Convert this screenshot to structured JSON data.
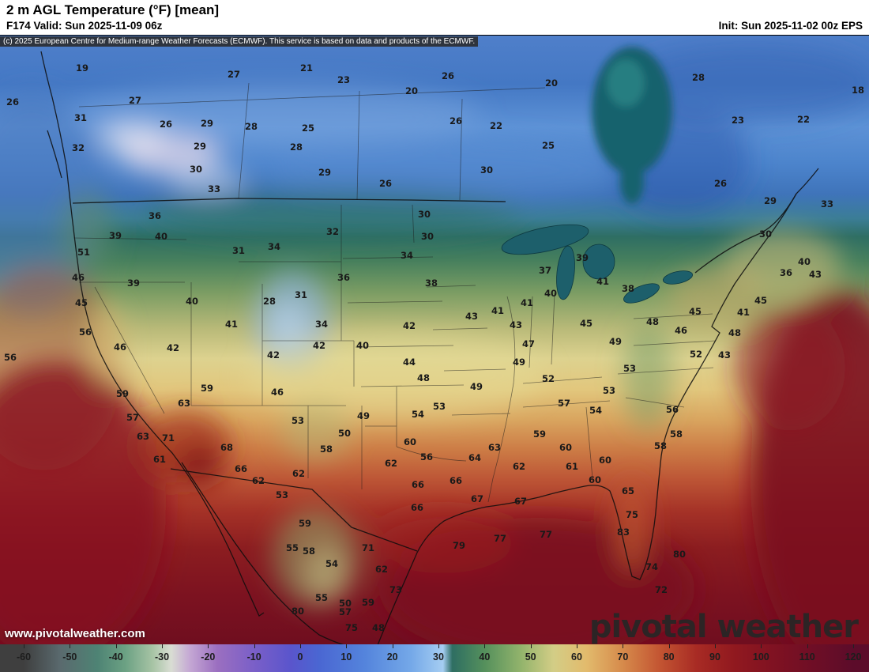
{
  "header": {
    "title": "2 m AGL Temperature (°F) [mean]",
    "valid": "F174 Valid: Sun 2025-11-09 06z",
    "init": "Init: Sun 2025-11-02 00z EPS"
  },
  "map": {
    "copyright": "(c) 2025 European Centre for Medium-range Weather Forecasts (ECMWF). This service is based on data and products of the ECMWF.",
    "watermark": "www.pivotalweather.com",
    "logo": "pivotal weather"
  },
  "chart_data": {
    "type": "heatmap",
    "title": "2 m AGL Temperature (°F) [mean]",
    "units": "°F",
    "model": "EPS",
    "forecast_hour": "F174",
    "valid_time": "Sun 2025-11-09 06z",
    "init_time": "Sun 2025-11-02 00z",
    "region": "North America",
    "colorbar": {
      "min": -60,
      "max": 120,
      "ticks": [
        -60,
        -50,
        -40,
        -30,
        -20,
        -10,
        0,
        10,
        20,
        30,
        40,
        50,
        60,
        70,
        80,
        90,
        100,
        110,
        120
      ],
      "stops": [
        {
          "v": -60,
          "c": "#3f3f3f"
        },
        {
          "v": -52,
          "c": "#5a6a6e"
        },
        {
          "v": -44,
          "c": "#4e8374"
        },
        {
          "v": -38,
          "c": "#6ba183"
        },
        {
          "v": -32,
          "c": "#a7c4a5"
        },
        {
          "v": -28,
          "c": "#d9ddd3"
        },
        {
          "v": -24,
          "c": "#c5a8d4"
        },
        {
          "v": -18,
          "c": "#9b6fc0"
        },
        {
          "v": -10,
          "c": "#7a5fc8"
        },
        {
          "v": -2,
          "c": "#5a55cc"
        },
        {
          "v": 4,
          "c": "#4a66d2"
        },
        {
          "v": 14,
          "c": "#5484dc"
        },
        {
          "v": 24,
          "c": "#74a8e8"
        },
        {
          "v": 31,
          "c": "#a5cdf2"
        },
        {
          "v": 33,
          "c": "#2e6e62"
        },
        {
          "v": 40,
          "c": "#55905c"
        },
        {
          "v": 48,
          "c": "#93b46c"
        },
        {
          "v": 55,
          "c": "#d3cd86"
        },
        {
          "v": 62,
          "c": "#e2bb6d"
        },
        {
          "v": 70,
          "c": "#d68a4b"
        },
        {
          "v": 78,
          "c": "#c35532"
        },
        {
          "v": 86,
          "c": "#a82b24"
        },
        {
          "v": 94,
          "c": "#91191f"
        },
        {
          "v": 104,
          "c": "#7d1122"
        },
        {
          "v": 112,
          "c": "#6d0e26"
        },
        {
          "v": 120,
          "c": "#5c0c2a"
        }
      ]
    },
    "station_values": [
      [
        19,
        104,
        41
      ],
      [
        27,
        296,
        49
      ],
      [
        21,
        388,
        41
      ],
      [
        23,
        435,
        56
      ],
      [
        26,
        567,
        51
      ],
      [
        20,
        698,
        60
      ],
      [
        28,
        884,
        53
      ],
      [
        18,
        1086,
        69
      ],
      [
        26,
        16,
        84
      ],
      [
        27,
        171,
        82
      ],
      [
        31,
        102,
        104
      ],
      [
        26,
        210,
        112
      ],
      [
        29,
        262,
        111
      ],
      [
        28,
        318,
        115
      ],
      [
        25,
        390,
        117
      ],
      [
        20,
        521,
        70
      ],
      [
        26,
        577,
        108
      ],
      [
        22,
        628,
        114
      ],
      [
        23,
        934,
        107
      ],
      [
        22,
        1017,
        106
      ],
      [
        32,
        99,
        142
      ],
      [
        29,
        253,
        140
      ],
      [
        28,
        375,
        141
      ],
      [
        25,
        694,
        139
      ],
      [
        30,
        248,
        169
      ],
      [
        29,
        411,
        173
      ],
      [
        26,
        488,
        187
      ],
      [
        30,
        616,
        170
      ],
      [
        26,
        912,
        187
      ],
      [
        29,
        975,
        209
      ],
      [
        33,
        271,
        194
      ],
      [
        30,
        537,
        226
      ],
      [
        33,
        1047,
        213
      ],
      [
        36,
        196,
        228
      ],
      [
        39,
        146,
        253
      ],
      [
        40,
        204,
        254
      ],
      [
        51,
        106,
        274
      ],
      [
        46,
        99,
        306
      ],
      [
        39,
        169,
        313
      ],
      [
        45,
        103,
        338
      ],
      [
        31,
        302,
        272
      ],
      [
        34,
        347,
        267
      ],
      [
        32,
        421,
        248
      ],
      [
        30,
        541,
        254
      ],
      [
        34,
        515,
        278
      ],
      [
        36,
        435,
        306
      ],
      [
        31,
        381,
        328
      ],
      [
        28,
        341,
        336
      ],
      [
        40,
        243,
        336
      ],
      [
        37,
        690,
        297
      ],
      [
        38,
        546,
        313
      ],
      [
        41,
        630,
        348
      ],
      [
        43,
        597,
        355
      ],
      [
        43,
        653,
        366
      ],
      [
        41,
        667,
        338
      ],
      [
        40,
        697,
        326
      ],
      [
        39,
        737,
        281
      ],
      [
        41,
        763,
        311
      ],
      [
        38,
        795,
        320
      ],
      [
        30,
        969,
        251
      ],
      [
        40,
        1018,
        286
      ],
      [
        43,
        1032,
        302
      ],
      [
        36,
        995,
        300
      ],
      [
        45,
        963,
        335
      ],
      [
        41,
        941,
        350
      ],
      [
        48,
        930,
        376
      ],
      [
        52,
        881,
        403
      ],
      [
        43,
        917,
        404
      ],
      [
        56,
        108,
        375
      ],
      [
        46,
        152,
        394
      ],
      [
        42,
        219,
        395
      ],
      [
        41,
        293,
        365
      ],
      [
        34,
        407,
        365
      ],
      [
        42,
        346,
        404
      ],
      [
        42,
        404,
        392
      ],
      [
        40,
        459,
        392
      ],
      [
        42,
        518,
        367
      ],
      [
        44,
        518,
        413
      ],
      [
        47,
        669,
        390
      ],
      [
        45,
        742,
        364
      ],
      [
        49,
        779,
        387
      ],
      [
        48,
        826,
        362
      ],
      [
        46,
        862,
        373
      ],
      [
        45,
        880,
        349
      ],
      [
        53,
        797,
        421
      ],
      [
        49,
        657,
        413
      ],
      [
        48,
        536,
        433
      ],
      [
        49,
        603,
        444
      ],
      [
        59,
        155,
        453
      ],
      [
        59,
        262,
        446
      ],
      [
        46,
        351,
        451
      ],
      [
        63,
        233,
        465
      ],
      [
        57,
        168,
        483
      ],
      [
        63,
        181,
        507
      ],
      [
        71,
        213,
        509
      ],
      [
        61,
        202,
        536
      ],
      [
        68,
        287,
        521
      ],
      [
        66,
        305,
        548
      ],
      [
        62,
        327,
        563
      ],
      [
        53,
        377,
        487
      ],
      [
        58,
        413,
        523
      ],
      [
        50,
        436,
        503
      ],
      [
        49,
        460,
        481
      ],
      [
        54,
        529,
        479
      ],
      [
        53,
        556,
        469
      ],
      [
        54,
        754,
        474
      ],
      [
        53,
        771,
        449
      ],
      [
        57,
        714,
        465
      ],
      [
        52,
        694,
        434
      ],
      [
        56,
        851,
        473
      ],
      [
        58,
        856,
        504
      ],
      [
        59,
        683,
        504
      ],
      [
        60,
        716,
        521
      ],
      [
        61,
        724,
        545
      ],
      [
        62,
        657,
        545
      ],
      [
        63,
        626,
        521
      ],
      [
        64,
        601,
        534
      ],
      [
        60,
        519,
        514
      ],
      [
        56,
        540,
        533
      ],
      [
        62,
        495,
        541
      ],
      [
        66,
        529,
        568
      ],
      [
        66,
        577,
        563
      ],
      [
        60,
        753,
        562
      ],
      [
        60,
        766,
        537
      ],
      [
        58,
        836,
        519
      ],
      [
        62,
        378,
        554
      ],
      [
        53,
        357,
        581
      ],
      [
        66,
        528,
        597
      ],
      [
        67,
        604,
        586
      ],
      [
        67,
        659,
        589
      ],
      [
        65,
        795,
        576
      ],
      [
        75,
        800,
        606
      ],
      [
        79,
        581,
        645
      ],
      [
        77,
        633,
        636
      ],
      [
        77,
        691,
        631
      ],
      [
        83,
        789,
        628
      ],
      [
        74,
        825,
        672
      ],
      [
        72,
        837,
        701
      ],
      [
        80,
        860,
        656
      ],
      [
        59,
        386,
        617
      ],
      [
        55,
        370,
        648
      ],
      [
        58,
        391,
        652
      ],
      [
        71,
        466,
        648
      ],
      [
        62,
        483,
        675
      ],
      [
        73,
        501,
        701
      ],
      [
        54,
        420,
        668
      ],
      [
        55,
        407,
        711
      ],
      [
        50,
        437,
        718
      ],
      [
        59,
        466,
        717
      ],
      [
        57,
        437,
        729
      ],
      [
        80,
        377,
        728
      ],
      [
        48,
        479,
        749
      ],
      [
        75,
        445,
        749
      ],
      [
        56,
        13,
        407
      ]
    ]
  }
}
